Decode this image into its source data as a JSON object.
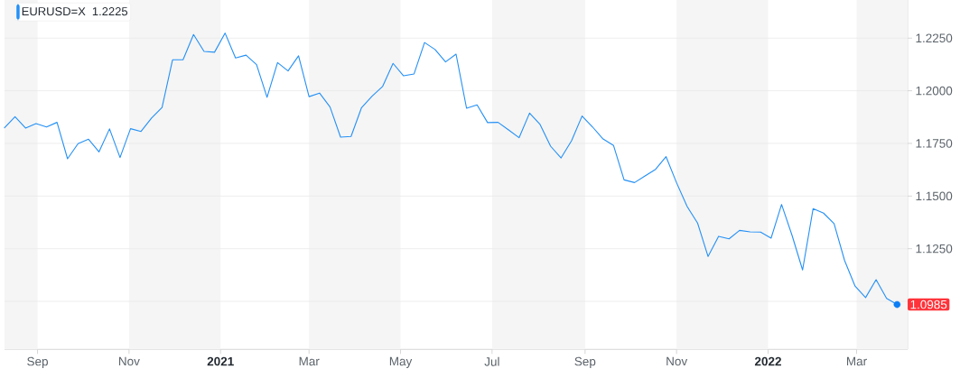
{
  "chart_data": {
    "type": "line",
    "x": [
      "2020-08-10",
      "2020-08-17",
      "2020-08-24",
      "2020-08-31",
      "2020-09-07",
      "2020-09-14",
      "2020-09-21",
      "2020-09-28",
      "2020-10-05",
      "2020-10-12",
      "2020-10-19",
      "2020-10-26",
      "2020-11-02",
      "2020-11-09",
      "2020-11-16",
      "2020-11-23",
      "2020-11-30",
      "2020-12-07",
      "2020-12-14",
      "2020-12-21",
      "2020-12-28",
      "2021-01-04",
      "2021-01-11",
      "2021-01-18",
      "2021-01-25",
      "2021-02-01",
      "2021-02-08",
      "2021-02-15",
      "2021-02-22",
      "2021-03-01",
      "2021-03-08",
      "2021-03-15",
      "2021-03-22",
      "2021-03-29",
      "2021-04-05",
      "2021-04-12",
      "2021-04-19",
      "2021-04-26",
      "2021-05-03",
      "2021-05-10",
      "2021-05-17",
      "2021-05-24",
      "2021-05-31",
      "2021-06-07",
      "2021-06-14",
      "2021-06-21",
      "2021-06-28",
      "2021-07-05",
      "2021-07-12",
      "2021-07-19",
      "2021-07-26",
      "2021-08-02",
      "2021-08-09",
      "2021-08-16",
      "2021-08-23",
      "2021-08-30",
      "2021-09-06",
      "2021-09-13",
      "2021-09-20",
      "2021-09-27",
      "2021-10-04",
      "2021-10-11",
      "2021-10-18",
      "2021-10-25",
      "2021-11-01",
      "2021-11-08",
      "2021-11-15",
      "2021-11-22",
      "2021-11-29",
      "2021-12-06",
      "2021-12-13",
      "2021-12-20",
      "2021-12-27",
      "2022-01-03",
      "2022-01-10",
      "2022-01-17",
      "2022-01-24",
      "2022-01-31",
      "2022-02-07",
      "2022-02-14",
      "2022-02-21",
      "2022-02-28",
      "2022-03-07",
      "2022-03-14",
      "2022-03-21",
      "2022-03-28"
    ],
    "series": [
      {
        "name": "EURUSD=X",
        "color": "#2490f5",
        "values": [
          1.1824,
          1.1877,
          1.1823,
          1.1844,
          1.1828,
          1.185,
          1.1677,
          1.1749,
          1.177,
          1.171,
          1.1819,
          1.1683,
          1.182,
          1.1807,
          1.187,
          1.1921,
          1.2147,
          1.2147,
          1.2267,
          1.2187,
          1.2183,
          1.2274,
          1.2156,
          1.2169,
          1.2124,
          1.1969,
          1.2134,
          1.2094,
          1.2166,
          1.1972,
          1.1989,
          1.1923,
          1.178,
          1.1783,
          1.192,
          1.1974,
          1.202,
          1.213,
          1.2071,
          1.208,
          1.2229,
          1.2196,
          1.2137,
          1.2174,
          1.1917,
          1.1933,
          1.1849,
          1.185,
          1.1814,
          1.1777,
          1.1894,
          1.184,
          1.1737,
          1.1681,
          1.1763,
          1.188,
          1.1828,
          1.1771,
          1.174,
          1.1577,
          1.1564,
          1.1596,
          1.1627,
          1.1687,
          1.1563,
          1.1451,
          1.1372,
          1.1213,
          1.1309,
          1.1297,
          1.1337,
          1.133,
          1.1329,
          1.13,
          1.146,
          1.1313,
          1.1149,
          1.144,
          1.1419,
          1.1369,
          1.1194,
          1.1072,
          1.1018,
          1.1103,
          1.1014,
          1.0985
        ]
      },
      {
        "type": "scatter",
        "x": [
          "2022-03-28"
        ],
        "values": [
          1.0985
        ],
        "color": "#0b7df5",
        "marker": "circle",
        "value_labels": [
          "1.0985"
        ]
      }
    ],
    "xlim": [
      "2020-08-10",
      "2022-04-04"
    ],
    "xticks": [
      {
        "value": "2020-09-01",
        "label": "Sep"
      },
      {
        "value": "2020-11-01",
        "label": "Nov"
      },
      {
        "value": "2021-01-01",
        "label": "2021"
      },
      {
        "value": "2021-03-01",
        "label": "Mar"
      },
      {
        "value": "2021-05-01",
        "label": "May"
      },
      {
        "value": "2021-07-01",
        "label": "Jul"
      },
      {
        "value": "2021-09-01",
        "label": "Sep"
      },
      {
        "value": "2021-11-01",
        "label": "Nov"
      },
      {
        "value": "2022-01-01",
        "label": "2022"
      },
      {
        "value": "2022-03-01",
        "label": "Mar"
      }
    ],
    "ylim": [
      1.0772,
      1.2431
    ],
    "yticks": [
      {
        "value": 1.1,
        "label": null
      },
      {
        "value": 1.125,
        "label": "1.1250"
      },
      {
        "value": 1.15,
        "label": "1.1500"
      },
      {
        "value": 1.175,
        "label": "1.1750"
      },
      {
        "value": 1.2,
        "label": "1.2000"
      },
      {
        "value": 1.225,
        "label": "1.2250"
      }
    ],
    "grid": "y",
    "legend": "top left",
    "annotations": [
      "1.2225"
    ],
    "bands": [
      {
        "axis": "x",
        "from": "2020-08-10",
        "to": "2020-09-01",
        "color": "#f5f5f5"
      },
      {
        "axis": "x",
        "from": "2020-11-01",
        "to": "2021-01-01",
        "color": "#f5f5f5"
      },
      {
        "axis": "x",
        "from": "2021-03-01",
        "to": "2021-05-01",
        "color": "#f5f5f5"
      },
      {
        "axis": "x",
        "from": "2021-07-01",
        "to": "2021-09-01",
        "color": "#f5f5f5"
      },
      {
        "axis": "x",
        "from": "2021-11-01",
        "to": "2022-01-01",
        "color": "#f5f5f5"
      },
      {
        "axis": "x",
        "from": "2022-03-01",
        "to": "2022-04-04",
        "color": "#f5f5f5"
      }
    ]
  }
}
